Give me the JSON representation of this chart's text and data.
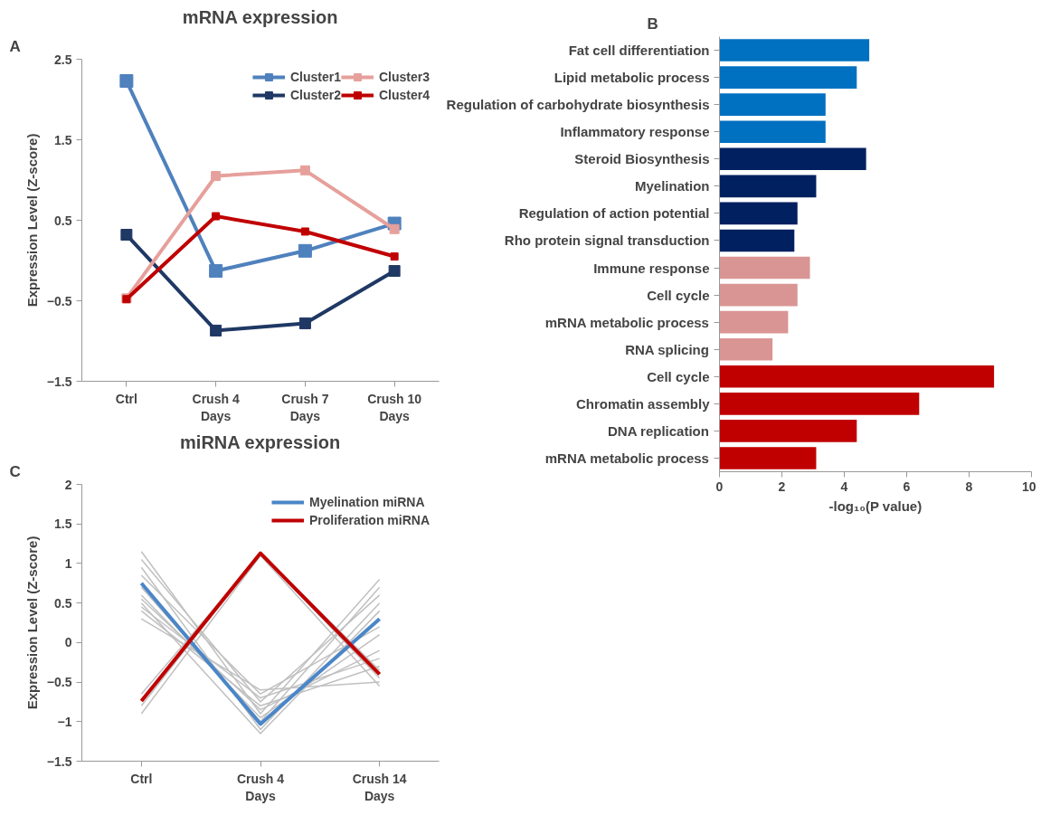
{
  "chart_data": [
    {
      "type": "line",
      "title": "mRNA expression",
      "ylabel": "Expression Level (Z-score)",
      "annotations": [
        "A"
      ],
      "categories": [
        "Ctrl",
        "Crush 4 Days",
        "Crush 7 Days",
        "Crush 10 Days"
      ],
      "ylim": [
        -1.5,
        2.5
      ],
      "yticks": [
        -1.5,
        -0.5,
        0.5,
        1.5,
        2.5
      ],
      "legend": "top right",
      "marker": "square",
      "series": [
        {
          "name": "Cluster1",
          "color": "#4f81bd",
          "values": [
            2.23,
            -0.13,
            0.12,
            0.46
          ]
        },
        {
          "name": "Cluster2",
          "color": "#1f3864",
          "values": [
            0.32,
            -0.87,
            -0.78,
            -0.13
          ]
        },
        {
          "name": "Cluster3",
          "color": "#e6a09c",
          "values": [
            -0.47,
            1.05,
            1.12,
            0.39
          ]
        },
        {
          "name": "Cluster4",
          "color": "#c00000",
          "values": [
            -0.48,
            0.55,
            0.36,
            0.05
          ]
        }
      ]
    },
    {
      "type": "bar",
      "orientation": "horizontal",
      "xlabel": "-log₁₀(P value)",
      "annotations": [
        "B"
      ],
      "categories": [
        "Fat cell differentiation",
        "Lipid metabolic process",
        "Regulation of carbohydrate biosynthesis",
        "Inflammatory response",
        "Steroid Biosynthesis",
        "Myelination",
        "Regulation of action potential",
        "Rho protein signal transduction",
        "Immune response",
        "Cell cycle",
        "mRNA metabolic process",
        "RNA splicing",
        "Cell cycle",
        "Chromatin assembly",
        "DNA replication",
        "mRNA metabolic process"
      ],
      "values": [
        4.8,
        4.4,
        3.4,
        3.4,
        4.7,
        3.1,
        2.5,
        2.4,
        2.9,
        2.5,
        2.2,
        1.7,
        8.8,
        6.4,
        4.4,
        3.1
      ],
      "colors": [
        "#0070c0",
        "#0070c0",
        "#0070c0",
        "#0070c0",
        "#002060",
        "#002060",
        "#002060",
        "#002060",
        "#d99594",
        "#d99594",
        "#d99594",
        "#d99594",
        "#c00000",
        "#c00000",
        "#c00000",
        "#c00000"
      ],
      "xlim": [
        0,
        10
      ],
      "xticks": [
        0,
        2,
        4,
        6,
        8,
        10
      ]
    },
    {
      "type": "line",
      "title": "miRNA expression",
      "ylabel": "Expression Level (Z-score)",
      "annotations": [
        "C"
      ],
      "categories": [
        "Ctrl",
        "Crush 4 Days",
        "Crush 14 Days"
      ],
      "ylim": [
        -1.5,
        2
      ],
      "yticks": [
        -1.5,
        -1,
        -0.5,
        0,
        0.5,
        1,
        1.5,
        2
      ],
      "legend": "top right",
      "series": [
        {
          "color": "#c0c0c0",
          "values": [
            1.15,
            -0.9,
            0.8
          ]
        },
        {
          "color": "#c0c0c0",
          "values": [
            1.05,
            -0.75,
            0.6
          ]
        },
        {
          "color": "#c0c0c0",
          "values": [
            0.95,
            -1.1,
            0.5
          ]
        },
        {
          "color": "#c0c0c0",
          "values": [
            0.85,
            -0.65,
            0.2
          ]
        },
        {
          "color": "#c0c0c0",
          "values": [
            0.6,
            -0.95,
            0.1
          ]
        },
        {
          "color": "#c0c0c0",
          "values": [
            0.5,
            -1.15,
            0.4
          ]
        },
        {
          "color": "#c0c0c0",
          "values": [
            0.4,
            -0.8,
            -0.3
          ]
        },
        {
          "color": "#c0c0c0",
          "values": [
            0.3,
            -0.6,
            -0.5
          ]
        },
        {
          "color": "#c0c0c0",
          "values": [
            0.45,
            -0.7,
            -0.2
          ]
        },
        {
          "color": "#c0c0c0",
          "values": [
            0.7,
            -1.0,
            0.7
          ]
        },
        {
          "color": "#c0c0c0",
          "values": [
            0.55,
            -0.85,
            -0.1
          ]
        },
        {
          "color": "#c0c0c0",
          "values": [
            -0.9,
            1.1,
            -0.55
          ]
        },
        {
          "color": "#c0c0c0",
          "values": [
            -0.65,
            1.12,
            -0.45
          ]
        },
        {
          "color": "#c0c0c0",
          "values": [
            -0.8,
            1.13,
            -0.35
          ]
        },
        {
          "name": "Myelination miRNA",
          "color": "#4a86c8",
          "values": [
            0.75,
            -1.03,
            0.3
          ]
        },
        {
          "name": "Proliferation miRNA",
          "color": "#c00000",
          "values": [
            -0.74,
            1.13,
            -0.4
          ]
        }
      ]
    }
  ]
}
